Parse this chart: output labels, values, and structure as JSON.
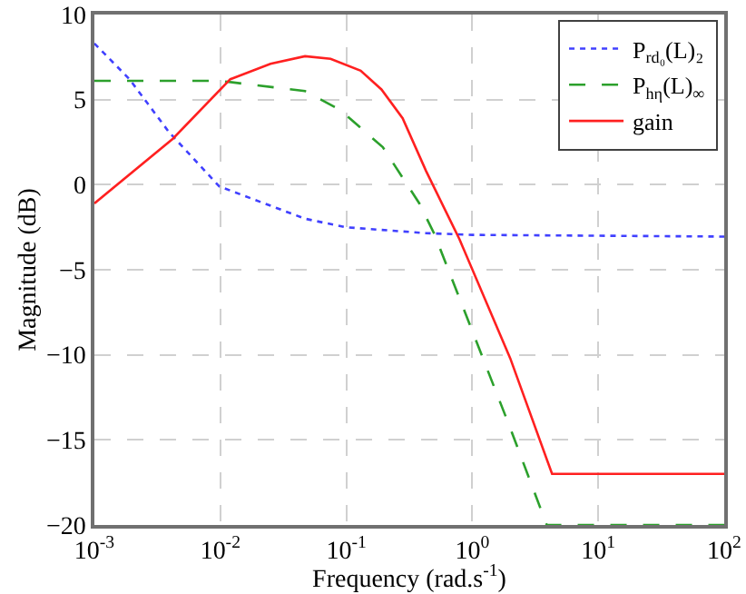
{
  "chart_data": {
    "type": "line",
    "xlabel": "Frequency (rad.s$^{-1}$)",
    "ylabel": "Magnitude (dB)",
    "log": "x",
    "grid": true,
    "legend": "top right",
    "xlim": [
      0.001,
      100
    ],
    "xticks": [
      {
        "value": 0.001,
        "label": "10$^{-3}$"
      },
      {
        "value": 0.01,
        "label": "10$^{-2}$"
      },
      {
        "value": 0.1,
        "label": "10$^{-1}$"
      },
      {
        "value": 1,
        "label": "10$^{0}$"
      },
      {
        "value": 10,
        "label": "10$^{1}$"
      },
      {
        "value": 100,
        "label": "10$^{2}$"
      }
    ],
    "ylim": [
      -20,
      10
    ],
    "yticks": [
      -20,
      -15,
      -10,
      -5,
      0,
      5,
      10
    ],
    "series": [
      {
        "name": "P$_{rd₀}$(L)₂",
        "color": "#4040ff",
        "line_style": "dotted",
        "x": [
          0.001,
          0.0019,
          0.0039,
          0.0098,
          0.047,
          0.098,
          0.43,
          1,
          10,
          100
        ],
        "values": [
          8.3,
          6.2,
          3.1,
          -0.1,
          -2.0,
          -2.5,
          -2.85,
          -2.95,
          -3.0,
          -3.05
        ]
      },
      {
        "name": "P$_{hη}$(L)$_{∞}$",
        "color": "#2ca02c",
        "line_style": "dashed",
        "x": [
          0.001,
          0.01,
          0.047,
          0.089,
          0.195,
          0.38,
          0.5,
          1,
          2,
          3.9,
          100
        ],
        "values": [
          6.1,
          6.1,
          5.5,
          4.4,
          2.2,
          -1.1,
          -2.9,
          -8.6,
          -14.3,
          -20,
          -20
        ]
      },
      {
        "name": "gain",
        "color": "#ff2020",
        "line_style": "solid",
        "x": [
          0.001,
          0.0042,
          0.012,
          0.025,
          0.047,
          0.075,
          0.13,
          0.19,
          0.28,
          0.43,
          0.79,
          2,
          4.3,
          100
        ],
        "values": [
          -1.1,
          2.7,
          6.2,
          7.1,
          7.55,
          7.4,
          6.7,
          5.6,
          3.9,
          0.8,
          -3.2,
          -10.2,
          -17,
          -17
        ]
      }
    ]
  }
}
